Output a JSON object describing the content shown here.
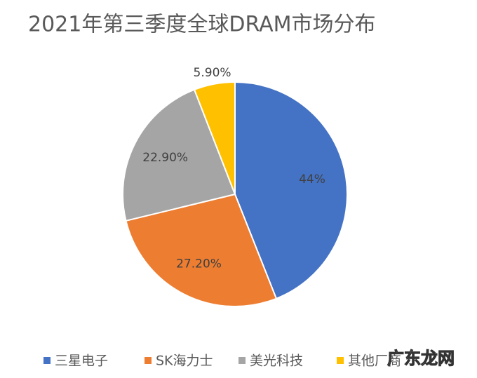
{
  "chart_data": {
    "type": "pie",
    "title": "2021年第三季度全球DRAM市场分布",
    "categories": [
      "三星电子",
      "SK海力士",
      "美光科技",
      "其他厂商"
    ],
    "values": [
      44,
      27.2,
      22.9,
      5.9
    ],
    "value_labels": [
      "44%",
      "27.20%",
      "22.90%",
      "5.90%"
    ],
    "colors": [
      "#4472c4",
      "#ed7d31",
      "#a5a5a5",
      "#ffc000"
    ],
    "legend": "bottom",
    "watermark": "广东龙网"
  }
}
